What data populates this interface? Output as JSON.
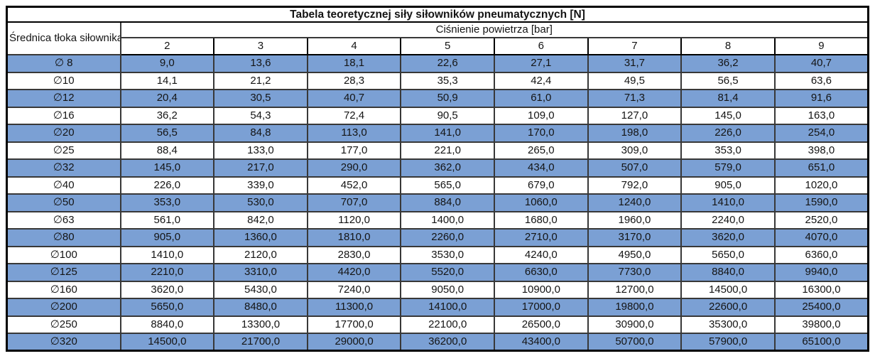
{
  "chart_data": {
    "type": "table",
    "title": "Tabela teoretycznej siły siłowników pneumatycznych [N]",
    "row_header_label": "Średnica tłoka siłownika",
    "column_group_label": "Ciśnienie powietrza [bar]",
    "columns": [
      "2",
      "3",
      "4",
      "5",
      "6",
      "7",
      "8",
      "9"
    ],
    "rows": [
      {
        "diameter": "∅ 8",
        "values": [
          "9,0",
          "13,6",
          "18,1",
          "22,6",
          "27,1",
          "31,7",
          "36,2",
          "40,7"
        ]
      },
      {
        "diameter": "∅10",
        "values": [
          "14,1",
          "21,2",
          "28,3",
          "35,3",
          "42,4",
          "49,5",
          "56,5",
          "63,6"
        ]
      },
      {
        "diameter": "∅12",
        "values": [
          "20,4",
          "30,5",
          "40,7",
          "50,9",
          "61,0",
          "71,3",
          "81,4",
          "91,6"
        ]
      },
      {
        "diameter": "∅16",
        "values": [
          "36,2",
          "54,3",
          "72,4",
          "90,5",
          "109,0",
          "127,0",
          "145,0",
          "163,0"
        ]
      },
      {
        "diameter": "∅20",
        "values": [
          "56,5",
          "84,8",
          "113,0",
          "141,0",
          "170,0",
          "198,0",
          "226,0",
          "254,0"
        ]
      },
      {
        "diameter": "∅25",
        "values": [
          "88,4",
          "133,0",
          "177,0",
          "221,0",
          "265,0",
          "309,0",
          "353,0",
          "398,0"
        ]
      },
      {
        "diameter": "∅32",
        "values": [
          "145,0",
          "217,0",
          "290,0",
          "362,0",
          "434,0",
          "507,0",
          "579,0",
          "651,0"
        ]
      },
      {
        "diameter": "∅40",
        "values": [
          "226,0",
          "339,0",
          "452,0",
          "565,0",
          "679,0",
          "792,0",
          "905,0",
          "1020,0"
        ]
      },
      {
        "diameter": "∅50",
        "values": [
          "353,0",
          "530,0",
          "707,0",
          "884,0",
          "1060,0",
          "1240,0",
          "1410,0",
          "1590,0"
        ]
      },
      {
        "diameter": "∅63",
        "values": [
          "561,0",
          "842,0",
          "1120,0",
          "1400,0",
          "1680,0",
          "1960,0",
          "2240,0",
          "2520,0"
        ]
      },
      {
        "diameter": "∅80",
        "values": [
          "905,0",
          "1360,0",
          "1810,0",
          "2260,0",
          "2710,0",
          "3170,0",
          "3620,0",
          "4070,0"
        ]
      },
      {
        "diameter": "∅100",
        "values": [
          "1410,0",
          "2120,0",
          "2830,0",
          "3530,0",
          "4240,0",
          "4950,0",
          "5650,0",
          "6360,0"
        ]
      },
      {
        "diameter": "∅125",
        "values": [
          "2210,0",
          "3310,0",
          "4420,0",
          "5520,0",
          "6630,0",
          "7730,0",
          "8840,0",
          "9940,0"
        ]
      },
      {
        "diameter": "∅160",
        "values": [
          "3620,0",
          "5430,0",
          "7240,0",
          "9050,0",
          "10900,0",
          "12700,0",
          "14500,0",
          "16300,0"
        ]
      },
      {
        "diameter": "∅200",
        "values": [
          "5650,0",
          "8480,0",
          "11300,0",
          "14100,0",
          "17000,0",
          "19800,0",
          "22600,0",
          "25400,0"
        ]
      },
      {
        "diameter": "∅250",
        "values": [
          "8840,0",
          "13300,0",
          "17700,0",
          "22100,0",
          "26500,0",
          "30900,0",
          "35300,0",
          "39800,0"
        ]
      },
      {
        "diameter": "∅320",
        "values": [
          "14500,0",
          "21700,0",
          "29000,0",
          "36200,0",
          "43400,0",
          "50700,0",
          "57900,0",
          "65100,0"
        ]
      }
    ],
    "layout": {
      "banding": "alternating rows starting blue at first data row",
      "grid": "on"
    }
  },
  "style": {
    "band_blue": "#7BA0D4",
    "band_white": "#FFFFFF",
    "grid_line": "#383838",
    "outer_border": "#000000",
    "text_color": "#141414"
  }
}
